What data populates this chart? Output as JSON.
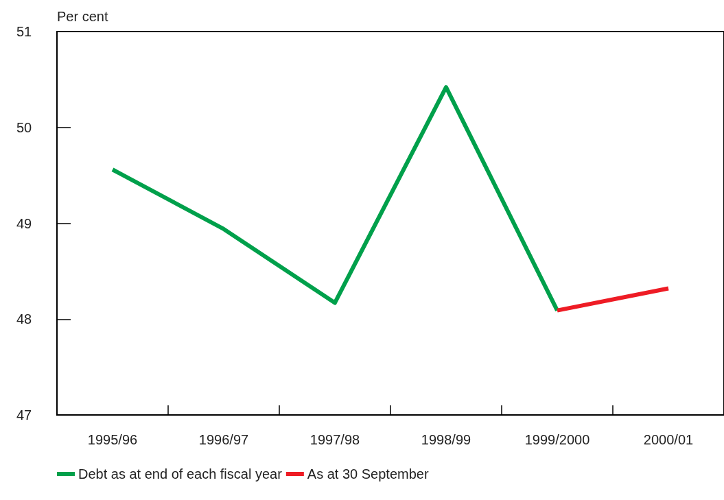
{
  "chart_data": {
    "type": "line",
    "ylabel": "Per cent",
    "categories": [
      "1995/96",
      "1996/97",
      "1997/98",
      "1998/99",
      "1999/2000",
      "2000/01"
    ],
    "series": [
      {
        "name": "Debt as at end of each fiscal year",
        "color": "#00a04b",
        "values": [
          49.56,
          48.94,
          48.17,
          50.42,
          48.09,
          null
        ]
      },
      {
        "name": "As at 30 September",
        "color": "#ee1c25",
        "values": [
          null,
          null,
          null,
          null,
          48.09,
          48.32
        ]
      }
    ],
    "ylim": [
      47,
      51
    ],
    "yticks": [
      47,
      48,
      49,
      50,
      51
    ],
    "grid": false,
    "legend": "bottom left",
    "marker": "none",
    "line_style": "solid"
  }
}
